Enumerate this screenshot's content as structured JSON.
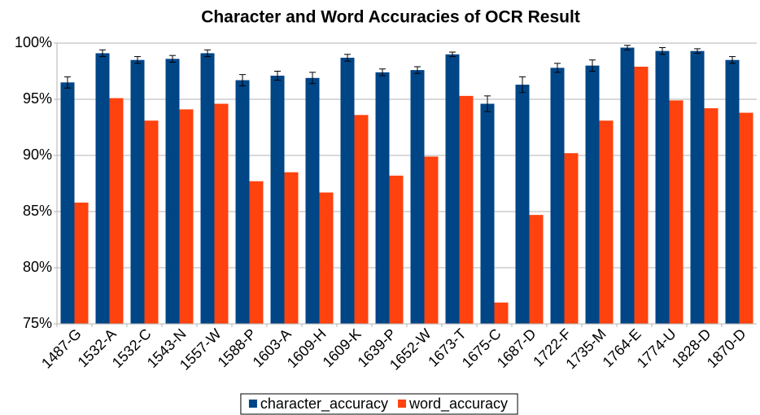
{
  "chart_data": {
    "type": "bar",
    "title": "Character and Word Accuracies of OCR Result",
    "categories": [
      "1487-G",
      "1532-A",
      "1532-C",
      "1543-N",
      "1557-W",
      "1588-P",
      "1603-A",
      "1609-H",
      "1609-K",
      "1639-P",
      "1652-W",
      "1673-T",
      "1675-C",
      "1687-D",
      "1722-F",
      "1735-M",
      "1764-E",
      "1774-U",
      "1828-D",
      "1870-D"
    ],
    "series": [
      {
        "name": "character_accuracy",
        "color": "#004586",
        "values": [
          96.5,
          99.1,
          98.5,
          98.6,
          99.1,
          96.7,
          97.1,
          96.9,
          98.7,
          97.4,
          97.6,
          99.0,
          94.6,
          96.3,
          97.8,
          98.0,
          99.6,
          99.3,
          99.3,
          98.5
        ],
        "errors": [
          0.5,
          0.3,
          0.3,
          0.3,
          0.3,
          0.5,
          0.4,
          0.5,
          0.3,
          0.3,
          0.3,
          0.2,
          0.7,
          0.7,
          0.4,
          0.5,
          0.2,
          0.3,
          0.2,
          0.3
        ]
      },
      {
        "name": "word_accuracy",
        "color": "#ff420e",
        "values": [
          85.8,
          95.1,
          93.1,
          94.1,
          94.6,
          87.7,
          88.5,
          86.7,
          93.6,
          88.2,
          89.9,
          95.3,
          76.9,
          84.7,
          90.2,
          93.1,
          97.9,
          94.9,
          94.2,
          93.8
        ]
      }
    ],
    "ylim": [
      75,
      100
    ],
    "yticks": [
      {
        "value": 75,
        "label": "75%"
      },
      {
        "value": 80,
        "label": "80%"
      },
      {
        "value": 85,
        "label": "85%"
      },
      {
        "value": 90,
        "label": "90%"
      },
      {
        "value": 95,
        "label": "95%"
      },
      {
        "value": 100,
        "label": "100%"
      }
    ],
    "grid": true,
    "legend": "bottom"
  }
}
